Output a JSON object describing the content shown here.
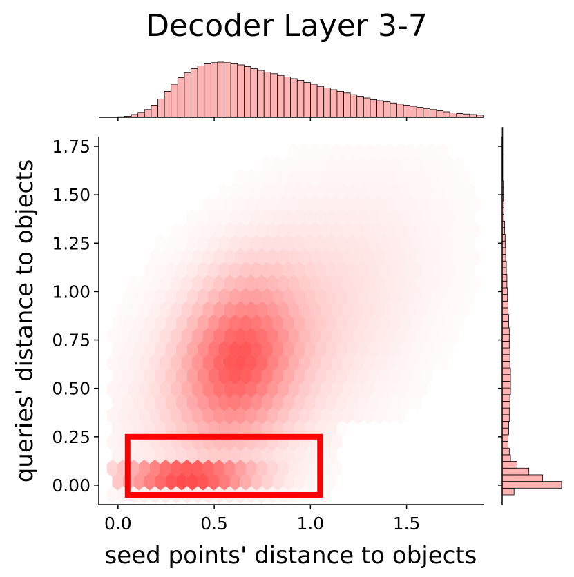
{
  "chart_data": {
    "type": "heatmap",
    "subtype": "jointplot-hexbin",
    "title": "Decoder Layer 3-7",
    "xlabel": "seed points' distance to objects",
    "ylabel": "queries' distance to objects",
    "xlim": [
      -0.1,
      1.9
    ],
    "ylim": [
      -0.1,
      1.8
    ],
    "xticks": [
      0.0,
      0.5,
      1.0,
      1.5
    ],
    "xtick_labels": [
      "0.0",
      "0.5",
      "1.0",
      "1.5"
    ],
    "yticks": [
      0.0,
      0.25,
      0.5,
      0.75,
      1.0,
      1.25,
      1.5,
      1.75
    ],
    "ytick_labels": [
      "0.00",
      "0.25",
      "0.50",
      "0.75",
      "1.00",
      "1.25",
      "1.50",
      "1.75"
    ],
    "grid": false,
    "colors": {
      "hex_base": "#ff0000",
      "hist_fill": "#ffb3b3",
      "hist_edge": "#000000",
      "highlight": "#ff0000"
    },
    "density_modes": [
      {
        "x": 0.35,
        "y": 0.05,
        "weight": 1.0
      },
      {
        "x": 0.62,
        "y": 0.62,
        "weight": 0.5
      }
    ],
    "highlight_region": {
      "x0": 0.05,
      "x1": 1.05,
      "y0": -0.05,
      "y1": 0.25
    },
    "x_marginal": {
      "bin_start": 0.0,
      "bin_width": 0.0345,
      "counts": [
        0.01,
        0.02,
        0.05,
        0.09,
        0.14,
        0.22,
        0.33,
        0.47,
        0.6,
        0.72,
        0.81,
        0.88,
        0.93,
        0.97,
        0.99,
        1.0,
        0.99,
        0.97,
        0.95,
        0.92,
        0.88,
        0.85,
        0.82,
        0.79,
        0.76,
        0.73,
        0.7,
        0.67,
        0.63,
        0.6,
        0.56,
        0.53,
        0.5,
        0.47,
        0.44,
        0.41,
        0.38,
        0.35,
        0.32,
        0.3,
        0.28,
        0.26,
        0.24,
        0.22,
        0.2,
        0.18,
        0.16,
        0.14,
        0.12,
        0.1,
        0.08,
        0.07,
        0.06,
        0.05,
        0.04
      ]
    },
    "y_marginal": {
      "bin_start": -0.05,
      "bin_width": 0.0345,
      "counts": [
        0.2,
        1.0,
        0.68,
        0.45,
        0.25,
        0.14,
        0.12,
        0.1,
        0.1,
        0.11,
        0.11,
        0.12,
        0.12,
        0.13,
        0.13,
        0.14,
        0.14,
        0.14,
        0.14,
        0.13,
        0.13,
        0.13,
        0.12,
        0.12,
        0.12,
        0.11,
        0.11,
        0.1,
        0.1,
        0.09,
        0.09,
        0.08,
        0.08,
        0.07,
        0.07,
        0.06,
        0.06,
        0.05,
        0.05,
        0.04,
        0.04,
        0.03,
        0.03,
        0.03,
        0.02,
        0.02,
        0.02,
        0.01,
        0.01,
        0.01,
        0.01,
        0.01,
        0.01,
        0.01,
        0.01
      ]
    }
  }
}
